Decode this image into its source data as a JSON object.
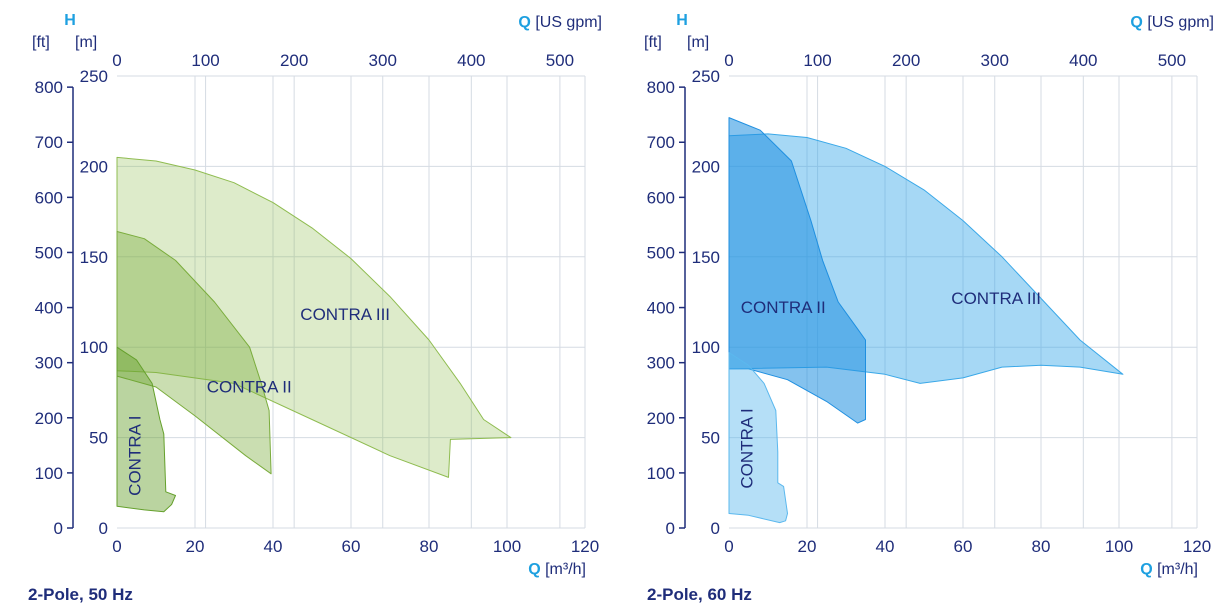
{
  "chart_data": [
    {
      "type": "area",
      "caption": "2-Pole, 50 Hz",
      "axes": {
        "x_bottom": {
          "symbol": "Q",
          "unit": "[m³/h]",
          "range": [
            0,
            120
          ],
          "ticks": [
            0,
            20,
            40,
            60,
            80,
            100,
            120
          ]
        },
        "x_top": {
          "symbol": "Q",
          "unit": "[US gpm]",
          "ticks": [
            0,
            100,
            200,
            300,
            400,
            500
          ]
        },
        "y_left_m": {
          "symbol": "H",
          "unit": "[m]",
          "range": [
            0,
            250
          ],
          "ticks": [
            0,
            50,
            100,
            150,
            200,
            250
          ]
        },
        "y_left_ft": {
          "unit": "[ft]",
          "ticks": [
            0,
            100,
            200,
            300,
            400,
            500,
            600,
            700,
            800
          ]
        }
      },
      "grid": true,
      "series": [
        {
          "name": "CONTRA III",
          "color": "#8fbc50",
          "fill_opacity": 0.3,
          "label_pos": [
            47,
            115
          ],
          "label_rotate": false,
          "polygon": [
            [
              0,
              205
            ],
            [
              10,
              203
            ],
            [
              20,
              198
            ],
            [
              30,
              191
            ],
            [
              40,
              180
            ],
            [
              50,
              166
            ],
            [
              60,
              149
            ],
            [
              70,
              128
            ],
            [
              80,
              104
            ],
            [
              88,
              80
            ],
            [
              94,
              60
            ],
            [
              101,
              50
            ],
            [
              85.5,
              49
            ],
            [
              85,
              28
            ],
            [
              70,
              40
            ],
            [
              50,
              60
            ],
            [
              30,
              80
            ],
            [
              10,
              86
            ],
            [
              0,
              87
            ]
          ]
        },
        {
          "name": "CONTRA II",
          "color": "#7aac3c",
          "fill_opacity": 0.4,
          "label_pos": [
            23,
            75
          ],
          "label_rotate": false,
          "polygon": [
            [
              0,
              164
            ],
            [
              7,
              160
            ],
            [
              15,
              148
            ],
            [
              25,
              125
            ],
            [
              34,
              100
            ],
            [
              37,
              80
            ],
            [
              39,
              65
            ],
            [
              39.5,
              30
            ],
            [
              33,
              40
            ],
            [
              20,
              62
            ],
            [
              10,
              78
            ],
            [
              0,
              84
            ]
          ]
        },
        {
          "name": "CONTRA I",
          "color": "#65a02c",
          "fill_opacity": 0.45,
          "label_pos": [
            6,
            40
          ],
          "label_rotate": true,
          "polygon": [
            [
              0,
              100
            ],
            [
              5,
              93
            ],
            [
              9,
              80
            ],
            [
              11,
              60
            ],
            [
              12,
              52
            ],
            [
              12.5,
              20
            ],
            [
              15,
              18
            ],
            [
              14,
              13
            ],
            [
              12,
              9
            ],
            [
              7,
              10
            ],
            [
              0,
              12
            ]
          ]
        }
      ],
      "paint_order": [
        "CONTRA III",
        "CONTRA II",
        "CONTRA I"
      ]
    },
    {
      "type": "area",
      "caption": "2-Pole, 60 Hz",
      "axes": {
        "x_bottom": {
          "symbol": "Q",
          "unit": "[m³/h]",
          "range": [
            0,
            120
          ],
          "ticks": [
            0,
            20,
            40,
            60,
            80,
            100,
            120
          ]
        },
        "x_top": {
          "symbol": "Q",
          "unit": "[US gpm]",
          "ticks": [
            0,
            100,
            200,
            300,
            400,
            500
          ]
        },
        "y_left_m": {
          "symbol": "H",
          "unit": "[m]",
          "range": [
            0,
            250
          ],
          "ticks": [
            0,
            50,
            100,
            150,
            200,
            250
          ]
        },
        "y_left_ft": {
          "unit": "[ft]",
          "ticks": [
            0,
            100,
            200,
            300,
            400,
            500,
            600,
            700,
            800
          ]
        }
      },
      "grid": true,
      "series": [
        {
          "name": "CONTRA III",
          "color": "#3aa8e8",
          "fill_opacity": 0.45,
          "label_pos": [
            57,
            124
          ],
          "label_rotate": false,
          "polygon": [
            [
              0,
              217
            ],
            [
              10,
              218
            ],
            [
              20,
              216
            ],
            [
              30,
              210
            ],
            [
              40,
              200
            ],
            [
              50,
              187
            ],
            [
              60,
              170
            ],
            [
              70,
              150
            ],
            [
              80,
              127
            ],
            [
              90,
              104
            ],
            [
              101,
              85
            ],
            [
              90,
              89
            ],
            [
              80,
              90
            ],
            [
              70,
              89
            ],
            [
              60,
              83
            ],
            [
              49,
              80
            ],
            [
              40,
              85
            ],
            [
              25,
              89
            ],
            [
              0,
              88
            ]
          ]
        },
        {
          "name": "CONTRA II",
          "color": "#1f8fe0",
          "fill_opacity": 0.55,
          "label_pos": [
            3,
            119
          ],
          "label_rotate": false,
          "polygon": [
            [
              0,
              227
            ],
            [
              8,
              220
            ],
            [
              16,
              203
            ],
            [
              21,
              170
            ],
            [
              24,
              148
            ],
            [
              28,
              125
            ],
            [
              33,
              110
            ],
            [
              35,
              104
            ],
            [
              35,
              60
            ],
            [
              33,
              58
            ],
            [
              25,
              70
            ],
            [
              15,
              82
            ],
            [
              5,
              88
            ],
            [
              0,
              88
            ]
          ]
        },
        {
          "name": "CONTRA I",
          "color": "#5bb8ee",
          "fill_opacity": 0.45,
          "label_pos": [
            6,
            44
          ],
          "label_rotate": true,
          "polygon": [
            [
              0,
              97
            ],
            [
              5,
              90
            ],
            [
              9,
              80
            ],
            [
              12,
              65
            ],
            [
              12.5,
              42
            ],
            [
              12.5,
              25
            ],
            [
              14,
              23
            ],
            [
              15,
              8
            ],
            [
              14.5,
              4
            ],
            [
              13,
              3
            ],
            [
              5,
              7
            ],
            [
              0,
              8
            ]
          ]
        }
      ],
      "paint_order": [
        "CONTRA III",
        "CONTRA II",
        "CONTRA I"
      ]
    }
  ]
}
